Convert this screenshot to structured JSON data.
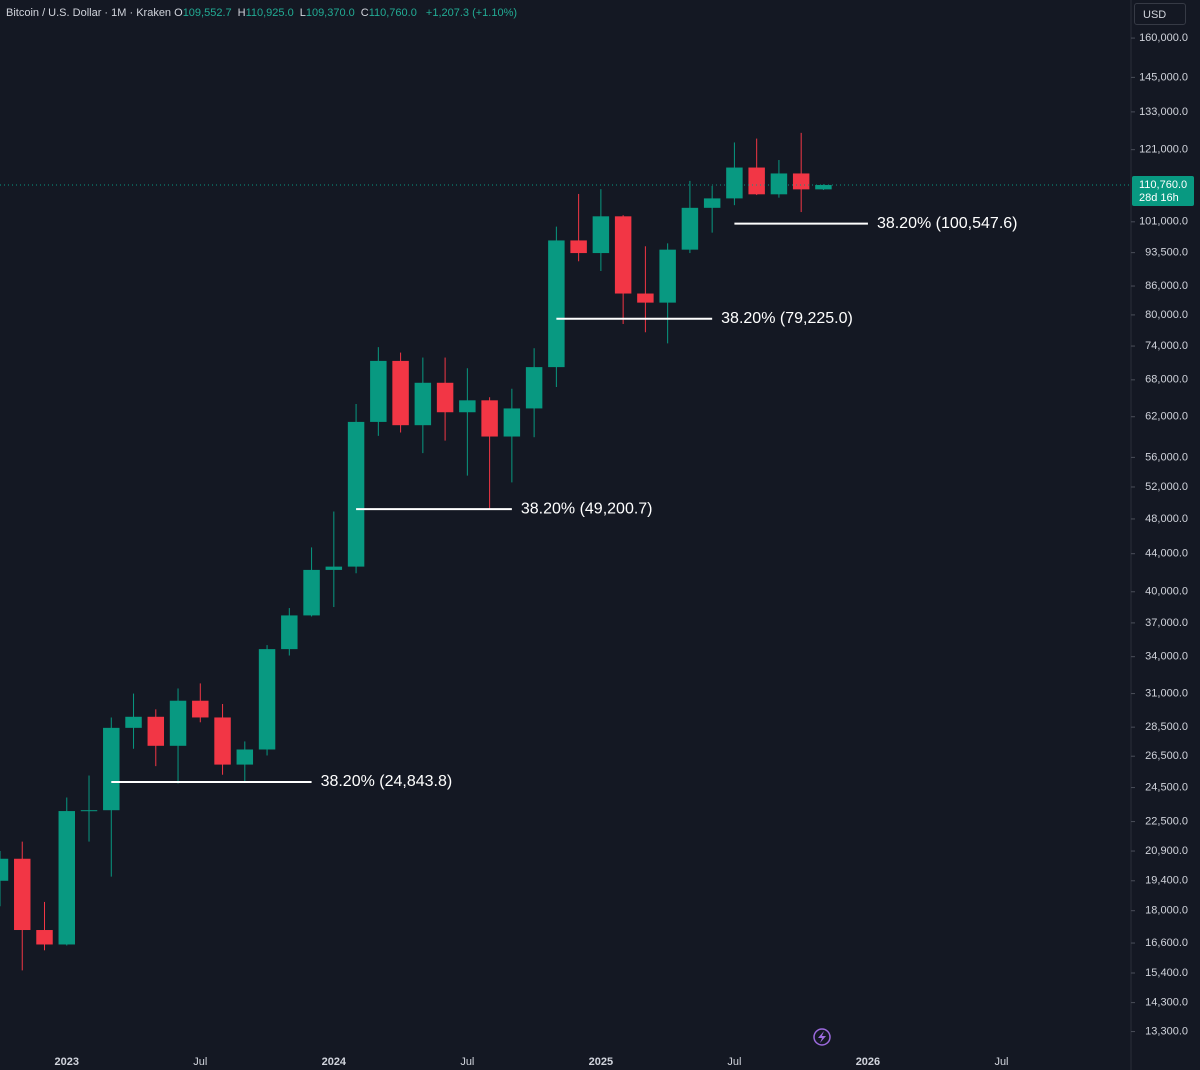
{
  "header": {
    "symbol": "Bitcoin / U.S. Dollar · 1M · Kraken",
    "ohlc": [
      {
        "key": "O",
        "value": "109,552.7"
      },
      {
        "key": "H",
        "value": "110,925.0"
      },
      {
        "key": "L",
        "value": "109,370.0"
      },
      {
        "key": "C",
        "value": "110,760.0"
      }
    ],
    "change": "+1,207.3 (+1.10%)",
    "currency": "USD"
  },
  "last_price": {
    "label": "110,760.0",
    "countdown": "28d 16h"
  },
  "chart_data": {
    "type": "candlestick",
    "log_scale": true,
    "up_color": "#089981",
    "down_color": "#f23645",
    "x": [
      "2022-10",
      "2022-11",
      "2022-12",
      "2023-01",
      "2023-02",
      "2023-03",
      "2023-04",
      "2023-05",
      "2023-06",
      "2023-07",
      "2023-08",
      "2023-09",
      "2023-10",
      "2023-11",
      "2023-12",
      "2024-01",
      "2024-02",
      "2024-03",
      "2024-04",
      "2024-05",
      "2024-06",
      "2024-07",
      "2024-08",
      "2024-09",
      "2024-10",
      "2024-11",
      "2024-12",
      "2025-01",
      "2025-02",
      "2025-03",
      "2025-04",
      "2025-05",
      "2025-06",
      "2025-07",
      "2025-08",
      "2025-09",
      "2025-10",
      "2025-11"
    ],
    "open": [
      19400,
      20500,
      17150,
      16540,
      23100,
      23150,
      28450,
      29250,
      27200,
      30450,
      29200,
      25950,
      26950,
      34650,
      37700,
      42250,
      42600,
      61200,
      71300,
      60700,
      67500,
      62700,
      64600,
      59000,
      63300,
      70200,
      96400,
      93400,
      102400,
      84400,
      82500,
      94200,
      104600,
      107100,
      115700,
      108200,
      114000,
      109552.7
    ],
    "high": [
      20900,
      21400,
      18400,
      23900,
      25250,
      29200,
      31000,
      29800,
      31400,
      31800,
      30200,
      27500,
      35000,
      38400,
      44700,
      48900,
      64000,
      73800,
      72800,
      71900,
      71900,
      70000,
      65100,
      66500,
      73600,
      99800,
      108300,
      109600,
      102700,
      95000,
      95700,
      111900,
      110500,
      123200,
      124400,
      117900,
      126200,
      110925
    ],
    "low": [
      18200,
      15500,
      16300,
      16500,
      21400,
      19600,
      27000,
      25850,
      24750,
      28850,
      25300,
      24900,
      26550,
      34100,
      37600,
      38500,
      41900,
      59100,
      59600,
      56600,
      58400,
      53500,
      49200,
      52600,
      58900,
      66800,
      91500,
      89300,
      78200,
      76600,
      74500,
      93400,
      98300,
      105300,
      108000,
      107300,
      103500,
      109370
    ],
    "close": [
      20500,
      17150,
      16540,
      23100,
      23150,
      28450,
      29250,
      27200,
      30450,
      29200,
      25950,
      26950,
      34650,
      37700,
      42250,
      42600,
      61200,
      71300,
      60700,
      67500,
      62700,
      64600,
      59000,
      63300,
      70200,
      96400,
      93400,
      102400,
      84400,
      82500,
      94200,
      104600,
      107100,
      115700,
      108200,
      114000,
      109550,
      110760
    ],
    "xlim": [
      "2022-10",
      "2027-01"
    ],
    "xticks": [
      {
        "value": "2023-01",
        "label": "2023"
      },
      {
        "value": "2023-07",
        "label": "Jul"
      },
      {
        "value": "2024-01",
        "label": "2024"
      },
      {
        "value": "2024-07",
        "label": "Jul"
      },
      {
        "value": "2025-01",
        "label": "2025"
      },
      {
        "value": "2025-07",
        "label": "Jul"
      },
      {
        "value": "2026-01",
        "label": "2026"
      },
      {
        "value": "2026-07",
        "label": "Jul"
      }
    ],
    "ylim": [
      12700,
      176000
    ],
    "yticks": [
      {
        "value": 160000,
        "label": "160,000.0"
      },
      {
        "value": 145000,
        "label": "145,000.0"
      },
      {
        "value": 133000,
        "label": "133,000.0"
      },
      {
        "value": 121000,
        "label": "121,000.0"
      },
      {
        "value": 101000,
        "label": "101,000.0"
      },
      {
        "value": 93500,
        "label": "93,500.0"
      },
      {
        "value": 86000,
        "label": "86,000.0"
      },
      {
        "value": 80000,
        "label": "80,000.0"
      },
      {
        "value": 74000,
        "label": "74,000.0"
      },
      {
        "value": 68000,
        "label": "68,000.0"
      },
      {
        "value": 62000,
        "label": "62,000.0"
      },
      {
        "value": 56000,
        "label": "56,000.0"
      },
      {
        "value": 52000,
        "label": "52,000.0"
      },
      {
        "value": 48000,
        "label": "48,000.0"
      },
      {
        "value": 44000,
        "label": "44,000.0"
      },
      {
        "value": 40000,
        "label": "40,000.0"
      },
      {
        "value": 37000,
        "label": "37,000.0"
      },
      {
        "value": 34000,
        "label": "34,000.0"
      },
      {
        "value": 31000,
        "label": "31,000.0"
      },
      {
        "value": 28500,
        "label": "28,500.0"
      },
      {
        "value": 26500,
        "label": "26,500.0"
      },
      {
        "value": 24500,
        "label": "24,500.0"
      },
      {
        "value": 22500,
        "label": "22,500.0"
      },
      {
        "value": 20900,
        "label": "20,900.0"
      },
      {
        "value": 19400,
        "label": "19,400.0"
      },
      {
        "value": 18000,
        "label": "18,000.0"
      },
      {
        "value": 16600,
        "label": "16,600.0"
      },
      {
        "value": 15400,
        "label": "15,400.0"
      },
      {
        "value": 14300,
        "label": "14,300.0"
      },
      {
        "value": 13300,
        "label": "13,300.0"
      }
    ],
    "annotations": [
      {
        "label": "38.20% (24,843.8)",
        "value": 24843.8,
        "start": "2023-03",
        "end": "2023-12"
      },
      {
        "label": "38.20% (49,200.7)",
        "value": 49200.7,
        "start": "2024-02",
        "end": "2024-09"
      },
      {
        "label": "38.20% (79,225.0)",
        "value": 79225.0,
        "start": "2024-11",
        "end": "2025-06"
      },
      {
        "label": "38.20% (100,547.6)",
        "value": 100547.6,
        "start": "2025-07",
        "end": "2026-01"
      }
    ]
  }
}
